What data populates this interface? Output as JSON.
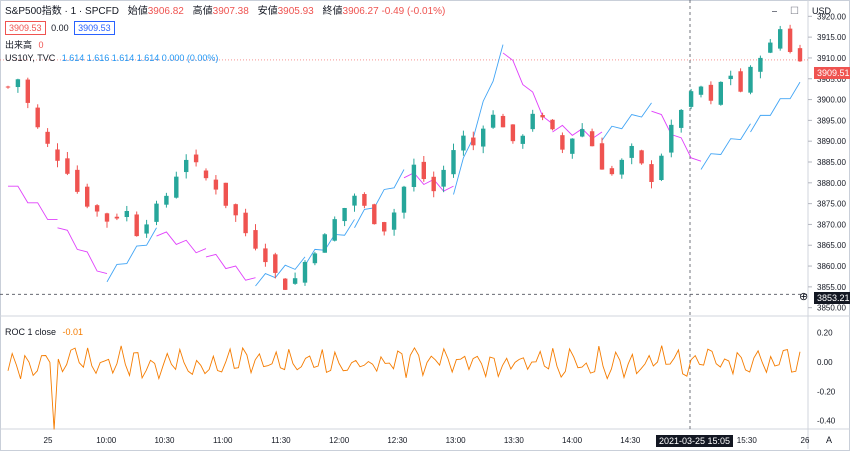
{
  "header": {
    "symbol": "S&P500指数 · 1 · SPCFD",
    "open_label": "始値",
    "open": "3906.82",
    "high_label": "高値",
    "high": "3907.38",
    "low_label": "安値",
    "low": "3905.93",
    "close_label": "終値",
    "close": "3906.27",
    "change": "-0.49 (-0.01%)",
    "sell_price": "3909.53",
    "spread": "0.00",
    "buy_price": "3909.53"
  },
  "volume_legend": {
    "label": "出来高",
    "value": "0"
  },
  "compare_legend": {
    "label": "US10Y, TVC",
    "values": "1.614  1.616  1.614  1.614  0.000 (0.00%)"
  },
  "roc_legend": {
    "label": "ROC 1 close",
    "value": "-0.01"
  },
  "price_axis": {
    "currency": "USD",
    "current_price_tag": "3909.51",
    "crosshair_price_tag": "3853.21"
  },
  "time_axis": {
    "crosshair_time_tag": "2021-03-25   15:05"
  },
  "colors": {
    "up": "#26a69a",
    "down": "#ef5350",
    "compare_up": "#42a5f5",
    "compare_down": "#e040fb",
    "roc": "#f57c00"
  },
  "chart_data": [
    {
      "type": "candlestick",
      "title": "S&P500指数 · 1 · SPCFD",
      "x_ticks": [
        "25",
        "10:00",
        "10:30",
        "11:00",
        "11:30",
        "12:00",
        "12:30",
        "13:00",
        "13:30",
        "14:00",
        "14:30",
        "15:00",
        "15:30",
        "26"
      ],
      "y_ticks": [
        3850,
        3855,
        3860,
        3865,
        3870,
        3875,
        3880,
        3885,
        3890,
        3895,
        3900,
        3905,
        3910,
        3915,
        3920
      ],
      "ylim": [
        3848,
        3922
      ],
      "close_path": [
        [
          0,
          3903
        ],
        [
          1,
          3905
        ],
        [
          2,
          3899
        ],
        [
          3,
          3893
        ],
        [
          4,
          3889
        ],
        [
          6,
          3883
        ],
        [
          7,
          3878
        ],
        [
          8,
          3875
        ],
        [
          9,
          3873
        ],
        [
          10,
          3871
        ],
        [
          11,
          3872
        ],
        [
          12,
          3873
        ],
        [
          13,
          3868
        ],
        [
          14,
          3871
        ],
        [
          15,
          3874
        ],
        [
          16,
          3877
        ],
        [
          17,
          3882
        ],
        [
          18,
          3886
        ],
        [
          19,
          3884
        ],
        [
          20,
          3881
        ],
        [
          21,
          3879
        ],
        [
          22,
          3875
        ],
        [
          23,
          3872
        ],
        [
          24,
          3868
        ],
        [
          25,
          3865
        ],
        [
          26,
          3862
        ],
        [
          27,
          3858
        ],
        [
          28,
          3855
        ],
        [
          29,
          3857
        ],
        [
          30,
          3861
        ],
        [
          31,
          3864
        ],
        [
          32,
          3867
        ],
        [
          33,
          3871
        ],
        [
          34,
          3874
        ],
        [
          35,
          3877
        ],
        [
          36,
          3874
        ],
        [
          37,
          3871
        ],
        [
          38,
          3869
        ],
        [
          39,
          3873
        ],
        [
          40,
          3879
        ],
        [
          41,
          3884
        ],
        [
          42,
          3881
        ],
        [
          43,
          3878
        ],
        [
          44,
          3883
        ],
        [
          45,
          3888
        ],
        [
          46,
          3891
        ],
        [
          47,
          3889
        ],
        [
          48,
          3894
        ],
        [
          49,
          3896
        ],
        [
          50,
          3894
        ],
        [
          51,
          3889
        ],
        [
          52,
          3892
        ],
        [
          53,
          3897
        ],
        [
          54,
          3895
        ],
        [
          55,
          3892
        ],
        [
          56,
          3888
        ],
        [
          57,
          3891
        ],
        [
          58,
          3893
        ],
        [
          59,
          3889
        ],
        [
          60,
          3884
        ],
        [
          61,
          3882
        ],
        [
          62,
          3885
        ],
        [
          63,
          3888
        ],
        [
          64,
          3884
        ],
        [
          65,
          3881
        ],
        [
          66,
          3887
        ],
        [
          67,
          3893
        ],
        [
          68,
          3898
        ],
        [
          69,
          3901
        ],
        [
          70,
          3903
        ],
        [
          71,
          3899
        ],
        [
          72,
          3904
        ],
        [
          73,
          3906
        ],
        [
          74,
          3902
        ],
        [
          75,
          3907
        ],
        [
          76,
          3911
        ],
        [
          77,
          3913
        ],
        [
          78,
          3917
        ],
        [
          79,
          3912
        ],
        [
          80,
          3909
        ]
      ]
    },
    {
      "type": "line",
      "title": "US10Y, TVC",
      "x": [
        0,
        5,
        10,
        15,
        20,
        25,
        30,
        35,
        40,
        45,
        50,
        55,
        60,
        65,
        70,
        75,
        80
      ],
      "values": [
        3880,
        3870,
        3857,
        3868,
        3863,
        3856,
        3861,
        3870,
        3882,
        3878,
        3912,
        3893,
        3891,
        3898,
        3884,
        3893,
        3903
      ]
    },
    {
      "type": "line",
      "title": "ROC 1 close",
      "y_ticks": [
        "0.20",
        "0.00",
        "-0.20",
        "-0.40"
      ],
      "ylim": [
        -0.45,
        0.3
      ],
      "min_value": -0.46,
      "min_at_percent_of_series": 6
    }
  ]
}
